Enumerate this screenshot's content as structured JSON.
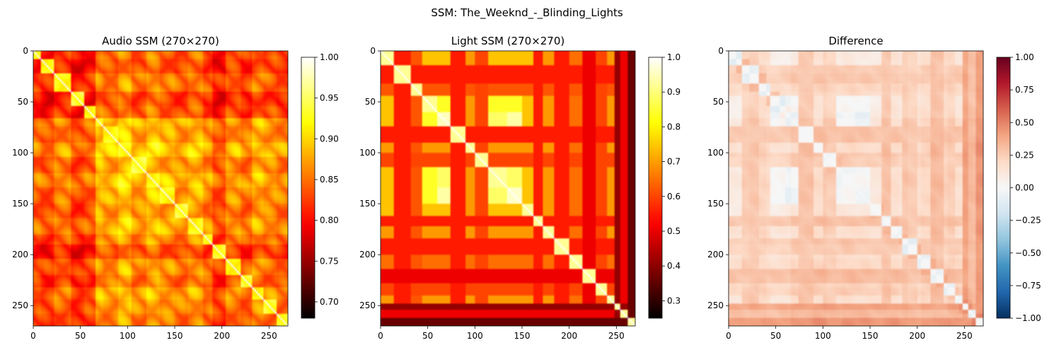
{
  "figure": {
    "suptitle": "SSM: The_Weeknd_-_Blinding_Lights"
  },
  "chart_data": [
    {
      "type": "heatmap",
      "title": "Audio SSM (270×270)",
      "colormap": "hot",
      "matrix_size": 270,
      "xlim": [
        0,
        270
      ],
      "ylim": [
        270,
        0
      ],
      "x_ticks": [
        0,
        50,
        100,
        150,
        200,
        250
      ],
      "y_ticks": [
        0,
        50,
        100,
        150,
        200,
        250
      ],
      "colorbar": {
        "vmin": 0.68,
        "vmax": 1.0,
        "ticks": [
          0.7,
          0.75,
          0.8,
          0.85,
          0.9,
          0.95,
          1.0
        ],
        "tick_labels": [
          "0.70",
          "0.75",
          "0.80",
          "0.85",
          "0.90",
          "0.95",
          "1.00"
        ]
      }
    },
    {
      "type": "heatmap",
      "title": "Light SSM (270×270)",
      "colormap": "hot",
      "matrix_size": 270,
      "xlim": [
        0,
        270
      ],
      "ylim": [
        270,
        0
      ],
      "x_ticks": [
        0,
        50,
        100,
        150,
        200,
        250
      ],
      "y_ticks": [
        0,
        50,
        100,
        150,
        200,
        250
      ],
      "colorbar": {
        "vmin": 0.25,
        "vmax": 1.0,
        "ticks": [
          0.3,
          0.4,
          0.5,
          0.6,
          0.7,
          0.8,
          0.9,
          1.0
        ],
        "tick_labels": [
          "0.3",
          "0.4",
          "0.5",
          "0.6",
          "0.7",
          "0.8",
          "0.9",
          "1.0"
        ]
      }
    },
    {
      "type": "heatmap",
      "title": "Difference",
      "colormap": "RdBu_r",
      "matrix_size": 270,
      "xlim": [
        0,
        270
      ],
      "ylim": [
        270,
        0
      ],
      "x_ticks": [
        0,
        50,
        100,
        150,
        200,
        250
      ],
      "y_ticks": [
        0,
        50,
        100,
        150,
        200,
        250
      ],
      "colorbar": {
        "vmin": -1.0,
        "vmax": 1.0,
        "ticks": [
          -1.0,
          -0.75,
          -0.5,
          -0.25,
          0.0,
          0.25,
          0.5,
          0.75,
          1.0
        ],
        "tick_labels": [
          "−1.00",
          "−0.75",
          "−0.50",
          "−0.25",
          "0.00",
          "0.25",
          "0.50",
          "0.75",
          "1.00"
        ]
      }
    }
  ]
}
